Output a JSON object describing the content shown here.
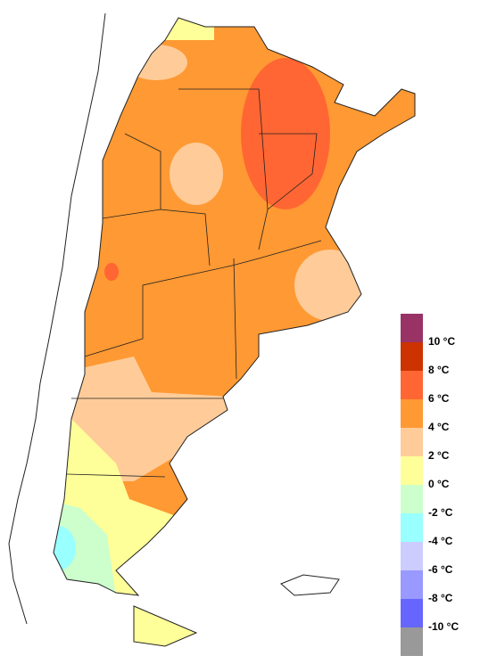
{
  "legend": {
    "colors": [
      "#993366",
      "#cc3300",
      "#ff6633",
      "#ff9933",
      "#ffcc99",
      "#ffff99",
      "#ccffcc",
      "#99ffff",
      "#ccccff",
      "#9999ff",
      "#6666ff",
      "#999999"
    ],
    "labels": [
      "10 °C",
      "8 °C",
      "6 °C",
      "4 °C",
      "2 °C",
      "0 °C",
      "-2 °C",
      "-4 °C",
      "-6 °C",
      "-8 °C",
      "-10 °C"
    ]
  }
}
